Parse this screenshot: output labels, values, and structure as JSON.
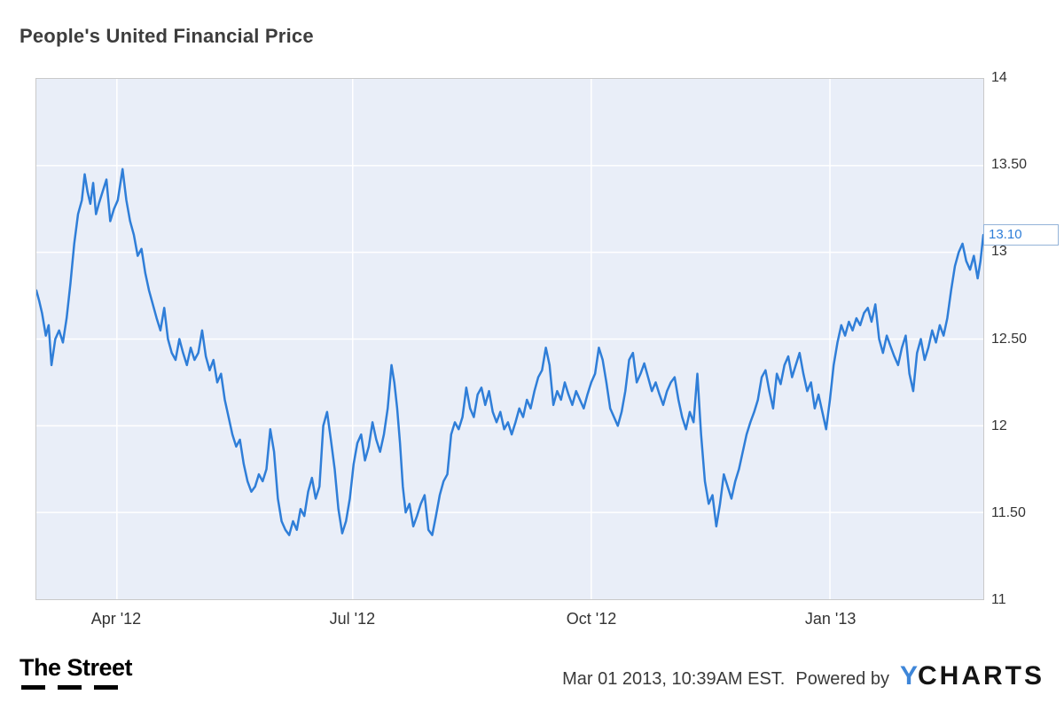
{
  "title": "People's United Financial Price",
  "chart_data": {
    "type": "line",
    "title": "People's United Financial Price",
    "xlabel": "",
    "ylabel": "",
    "ylim": [
      11,
      14
    ],
    "xlim": [
      0,
      1
    ],
    "grid": true,
    "legend": "none",
    "plot_bg": "#e9eef8",
    "grid_color": "#ffffff",
    "line_color": "#2f7ed8",
    "x_ticks": [
      {
        "pos": 0.085,
        "label": "Apr '12"
      },
      {
        "pos": 0.334,
        "label": "Jul '12"
      },
      {
        "pos": 0.586,
        "label": "Oct '12"
      },
      {
        "pos": 0.838,
        "label": "Jan '13"
      }
    ],
    "y_ticks": [
      {
        "value": 11,
        "label": "11"
      },
      {
        "value": 11.5,
        "label": "11.50"
      },
      {
        "value": 12,
        "label": "12"
      },
      {
        "value": 12.5,
        "label": "12.50"
      },
      {
        "value": 13,
        "label": "13"
      },
      {
        "value": 13.5,
        "label": "13.50"
      },
      {
        "value": 14,
        "label": "14"
      }
    ],
    "last_value": 13.1,
    "last_value_label": "13.10",
    "series": [
      {
        "name": "People's United Financial Price",
        "points": [
          [
            0.0,
            12.78
          ],
          [
            0.003,
            12.72
          ],
          [
            0.006,
            12.65
          ],
          [
            0.01,
            12.52
          ],
          [
            0.013,
            12.58
          ],
          [
            0.016,
            12.35
          ],
          [
            0.02,
            12.5
          ],
          [
            0.024,
            12.55
          ],
          [
            0.028,
            12.48
          ],
          [
            0.032,
            12.62
          ],
          [
            0.036,
            12.82
          ],
          [
            0.04,
            13.05
          ],
          [
            0.044,
            13.22
          ],
          [
            0.048,
            13.3
          ],
          [
            0.051,
            13.45
          ],
          [
            0.054,
            13.35
          ],
          [
            0.057,
            13.28
          ],
          [
            0.06,
            13.4
          ],
          [
            0.063,
            13.22
          ],
          [
            0.066,
            13.28
          ],
          [
            0.07,
            13.35
          ],
          [
            0.074,
            13.42
          ],
          [
            0.078,
            13.18
          ],
          [
            0.082,
            13.25
          ],
          [
            0.086,
            13.3
          ],
          [
            0.091,
            13.48
          ],
          [
            0.095,
            13.3
          ],
          [
            0.099,
            13.18
          ],
          [
            0.103,
            13.1
          ],
          [
            0.107,
            12.98
          ],
          [
            0.111,
            13.02
          ],
          [
            0.115,
            12.88
          ],
          [
            0.119,
            12.78
          ],
          [
            0.123,
            12.7
          ],
          [
            0.127,
            12.62
          ],
          [
            0.131,
            12.55
          ],
          [
            0.135,
            12.68
          ],
          [
            0.139,
            12.5
          ],
          [
            0.143,
            12.42
          ],
          [
            0.147,
            12.38
          ],
          [
            0.151,
            12.5
          ],
          [
            0.155,
            12.42
          ],
          [
            0.159,
            12.35
          ],
          [
            0.163,
            12.45
          ],
          [
            0.167,
            12.38
          ],
          [
            0.171,
            12.42
          ],
          [
            0.175,
            12.55
          ],
          [
            0.179,
            12.4
          ],
          [
            0.183,
            12.32
          ],
          [
            0.187,
            12.38
          ],
          [
            0.191,
            12.25
          ],
          [
            0.195,
            12.3
          ],
          [
            0.199,
            12.15
          ],
          [
            0.203,
            12.05
          ],
          [
            0.207,
            11.95
          ],
          [
            0.211,
            11.88
          ],
          [
            0.215,
            11.92
          ],
          [
            0.219,
            11.78
          ],
          [
            0.223,
            11.68
          ],
          [
            0.227,
            11.62
          ],
          [
            0.231,
            11.65
          ],
          [
            0.235,
            11.72
          ],
          [
            0.239,
            11.68
          ],
          [
            0.243,
            11.75
          ],
          [
            0.247,
            11.98
          ],
          [
            0.251,
            11.85
          ],
          [
            0.255,
            11.58
          ],
          [
            0.259,
            11.45
          ],
          [
            0.263,
            11.4
          ],
          [
            0.267,
            11.37
          ],
          [
            0.271,
            11.45
          ],
          [
            0.275,
            11.4
          ],
          [
            0.279,
            11.52
          ],
          [
            0.283,
            11.48
          ],
          [
            0.287,
            11.62
          ],
          [
            0.291,
            11.7
          ],
          [
            0.295,
            11.58
          ],
          [
            0.299,
            11.65
          ],
          [
            0.303,
            12.0
          ],
          [
            0.307,
            12.08
          ],
          [
            0.311,
            11.92
          ],
          [
            0.315,
            11.75
          ],
          [
            0.319,
            11.52
          ],
          [
            0.323,
            11.38
          ],
          [
            0.327,
            11.45
          ],
          [
            0.331,
            11.58
          ],
          [
            0.335,
            11.78
          ],
          [
            0.339,
            11.9
          ],
          [
            0.343,
            11.95
          ],
          [
            0.347,
            11.8
          ],
          [
            0.351,
            11.88
          ],
          [
            0.355,
            12.02
          ],
          [
            0.359,
            11.92
          ],
          [
            0.363,
            11.85
          ],
          [
            0.367,
            11.95
          ],
          [
            0.371,
            12.1
          ],
          [
            0.375,
            12.35
          ],
          [
            0.378,
            12.25
          ],
          [
            0.381,
            12.1
          ],
          [
            0.384,
            11.9
          ],
          [
            0.387,
            11.65
          ],
          [
            0.39,
            11.5
          ],
          [
            0.394,
            11.55
          ],
          [
            0.398,
            11.42
          ],
          [
            0.402,
            11.48
          ],
          [
            0.406,
            11.55
          ],
          [
            0.41,
            11.6
          ],
          [
            0.414,
            11.4
          ],
          [
            0.418,
            11.37
          ],
          [
            0.422,
            11.48
          ],
          [
            0.426,
            11.6
          ],
          [
            0.43,
            11.68
          ],
          [
            0.434,
            11.72
          ],
          [
            0.438,
            11.95
          ],
          [
            0.442,
            12.02
          ],
          [
            0.446,
            11.98
          ],
          [
            0.45,
            12.05
          ],
          [
            0.454,
            12.22
          ],
          [
            0.458,
            12.1
          ],
          [
            0.462,
            12.05
          ],
          [
            0.466,
            12.18
          ],
          [
            0.47,
            12.22
          ],
          [
            0.474,
            12.12
          ],
          [
            0.478,
            12.2
          ],
          [
            0.482,
            12.08
          ],
          [
            0.486,
            12.02
          ],
          [
            0.49,
            12.08
          ],
          [
            0.494,
            11.98
          ],
          [
            0.498,
            12.02
          ],
          [
            0.502,
            11.95
          ],
          [
            0.506,
            12.02
          ],
          [
            0.51,
            12.1
          ],
          [
            0.514,
            12.05
          ],
          [
            0.518,
            12.15
          ],
          [
            0.522,
            12.1
          ],
          [
            0.526,
            12.2
          ],
          [
            0.53,
            12.28
          ],
          [
            0.534,
            12.32
          ],
          [
            0.538,
            12.45
          ],
          [
            0.542,
            12.35
          ],
          [
            0.546,
            12.12
          ],
          [
            0.55,
            12.2
          ],
          [
            0.554,
            12.15
          ],
          [
            0.558,
            12.25
          ],
          [
            0.562,
            12.18
          ],
          [
            0.566,
            12.12
          ],
          [
            0.57,
            12.2
          ],
          [
            0.574,
            12.15
          ],
          [
            0.578,
            12.1
          ],
          [
            0.582,
            12.18
          ],
          [
            0.586,
            12.25
          ],
          [
            0.59,
            12.3
          ],
          [
            0.594,
            12.45
          ],
          [
            0.598,
            12.38
          ],
          [
            0.602,
            12.25
          ],
          [
            0.606,
            12.1
          ],
          [
            0.61,
            12.05
          ],
          [
            0.614,
            12.0
          ],
          [
            0.618,
            12.08
          ],
          [
            0.622,
            12.2
          ],
          [
            0.626,
            12.38
          ],
          [
            0.63,
            12.42
          ],
          [
            0.634,
            12.25
          ],
          [
            0.638,
            12.3
          ],
          [
            0.642,
            12.36
          ],
          [
            0.646,
            12.28
          ],
          [
            0.65,
            12.2
          ],
          [
            0.654,
            12.25
          ],
          [
            0.658,
            12.18
          ],
          [
            0.662,
            12.12
          ],
          [
            0.666,
            12.2
          ],
          [
            0.67,
            12.25
          ],
          [
            0.674,
            12.28
          ],
          [
            0.678,
            12.15
          ],
          [
            0.682,
            12.05
          ],
          [
            0.686,
            11.98
          ],
          [
            0.69,
            12.08
          ],
          [
            0.694,
            12.02
          ],
          [
            0.698,
            12.3
          ],
          [
            0.702,
            11.95
          ],
          [
            0.706,
            11.68
          ],
          [
            0.71,
            11.55
          ],
          [
            0.714,
            11.6
          ],
          [
            0.718,
            11.42
          ],
          [
            0.722,
            11.55
          ],
          [
            0.726,
            11.72
          ],
          [
            0.73,
            11.65
          ],
          [
            0.734,
            11.58
          ],
          [
            0.738,
            11.68
          ],
          [
            0.742,
            11.75
          ],
          [
            0.746,
            11.85
          ],
          [
            0.75,
            11.95
          ],
          [
            0.754,
            12.02
          ],
          [
            0.758,
            12.08
          ],
          [
            0.762,
            12.15
          ],
          [
            0.766,
            12.28
          ],
          [
            0.77,
            12.32
          ],
          [
            0.774,
            12.2
          ],
          [
            0.778,
            12.1
          ],
          [
            0.782,
            12.3
          ],
          [
            0.786,
            12.24
          ],
          [
            0.79,
            12.35
          ],
          [
            0.794,
            12.4
          ],
          [
            0.798,
            12.28
          ],
          [
            0.802,
            12.35
          ],
          [
            0.806,
            12.42
          ],
          [
            0.81,
            12.3
          ],
          [
            0.814,
            12.2
          ],
          [
            0.818,
            12.25
          ],
          [
            0.822,
            12.1
          ],
          [
            0.826,
            12.18
          ],
          [
            0.83,
            12.08
          ],
          [
            0.834,
            11.98
          ],
          [
            0.838,
            12.15
          ],
          [
            0.842,
            12.35
          ],
          [
            0.846,
            12.48
          ],
          [
            0.85,
            12.58
          ],
          [
            0.854,
            12.52
          ],
          [
            0.858,
            12.6
          ],
          [
            0.862,
            12.55
          ],
          [
            0.866,
            12.62
          ],
          [
            0.87,
            12.58
          ],
          [
            0.874,
            12.65
          ],
          [
            0.878,
            12.68
          ],
          [
            0.882,
            12.6
          ],
          [
            0.886,
            12.7
          ],
          [
            0.89,
            12.5
          ],
          [
            0.894,
            12.42
          ],
          [
            0.898,
            12.52
          ],
          [
            0.902,
            12.46
          ],
          [
            0.906,
            12.4
          ],
          [
            0.91,
            12.35
          ],
          [
            0.914,
            12.45
          ],
          [
            0.918,
            12.52
          ],
          [
            0.922,
            12.3
          ],
          [
            0.926,
            12.2
          ],
          [
            0.93,
            12.42
          ],
          [
            0.934,
            12.5
          ],
          [
            0.938,
            12.38
          ],
          [
            0.942,
            12.45
          ],
          [
            0.946,
            12.55
          ],
          [
            0.95,
            12.48
          ],
          [
            0.954,
            12.58
          ],
          [
            0.958,
            12.52
          ],
          [
            0.962,
            12.62
          ],
          [
            0.966,
            12.78
          ],
          [
            0.97,
            12.92
          ],
          [
            0.974,
            13.0
          ],
          [
            0.978,
            13.05
          ],
          [
            0.982,
            12.95
          ],
          [
            0.986,
            12.9
          ],
          [
            0.99,
            12.98
          ],
          [
            0.994,
            12.85
          ],
          [
            0.997,
            12.95
          ],
          [
            1.0,
            13.1
          ]
        ]
      }
    ]
  },
  "footer": {
    "brand": "The Street",
    "timestamp": "Mar 01 2013, 10:39AM EST.",
    "powered_by": "Powered by",
    "ycharts": {
      "y": "Y",
      "rest": "CHARTS",
      "blue": "#3e86d8"
    }
  }
}
